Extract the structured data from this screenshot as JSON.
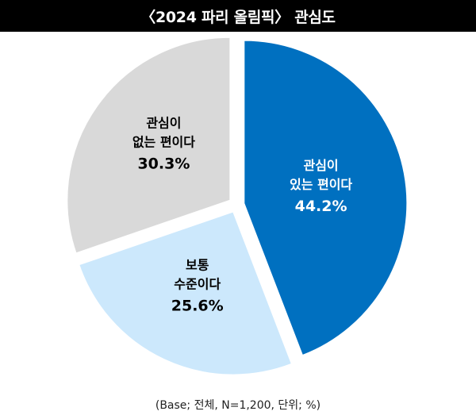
{
  "title": "〈2024 파리 올림픽〉 관심도",
  "source_note": "(Base; 전체, N=1,200, 단위; %)",
  "chart_data": {
    "type": "pie",
    "title": "〈2024 파리 올림픽〉 관심도",
    "unit": "%",
    "categories": [
      "관심이 있는 편이다",
      "보통 수준이다",
      "관심이 없는 편이다"
    ],
    "values": [
      44.2,
      25.6,
      30.3
    ],
    "labels": [
      {
        "line1": "관심이",
        "line2": "있는 편이다",
        "value_text": "44.2%"
      },
      {
        "line1": "보통",
        "line2": "수준이다",
        "value_text": "25.6%"
      },
      {
        "line1": "관심이",
        "line2": "없는 편이다",
        "value_text": "30.3%"
      }
    ],
    "colors": [
      "#0070c0",
      "#cce8fc",
      "#d9d9d9"
    ],
    "label_colors": [
      "#ffffff",
      "#000000",
      "#000000"
    ],
    "start": "12 o'clock",
    "direction": "clockwise",
    "exploded": "all slices",
    "legend": "none"
  }
}
